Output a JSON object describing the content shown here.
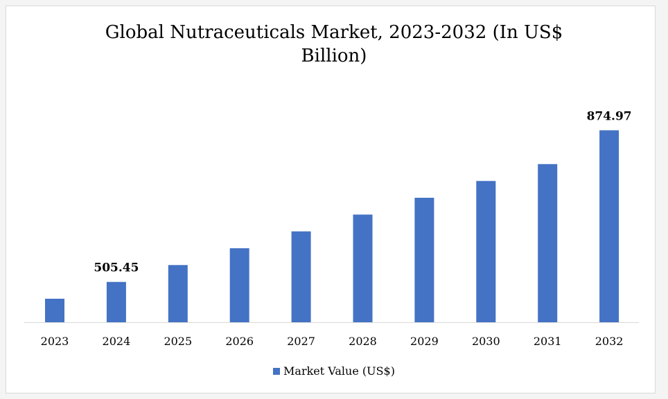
{
  "chart_data": {
    "type": "bar",
    "title": "Global Nutraceuticals Market, 2023-2032 (In US$ Billion)",
    "categories": [
      "2023",
      "2024",
      "2025",
      "2026",
      "2027",
      "2028",
      "2029",
      "2030",
      "2031",
      "2032"
    ],
    "series": [
      {
        "name": "Market Value (US$)",
        "values": [
          464.5,
          505.45,
          546.5,
          587.5,
          628.5,
          669.5,
          710.5,
          751.5,
          792.5,
          874.97
        ]
      }
    ],
    "data_labels": [
      {
        "category": "2024",
        "text": "505.45"
      },
      {
        "category": "2032",
        "text": "874.97"
      }
    ],
    "legend": {
      "label": "Market Value (US$)",
      "position": "bottom"
    },
    "grid": false,
    "y_axis_visible": false,
    "colors": {
      "bar": "#4472c4",
      "axis": "#d9d9d9"
    }
  }
}
